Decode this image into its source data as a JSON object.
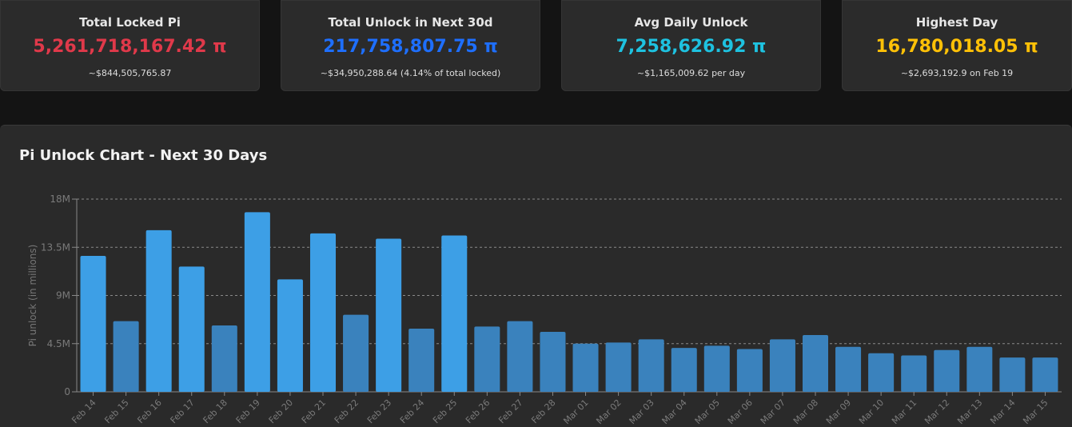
{
  "stats": [
    {
      "label": "Total Locked Pi",
      "value": "5,261,718,167.42 π",
      "sub": "~$844,505,765.87",
      "color": "#e0394a"
    },
    {
      "label": "Total Unlock in Next 30d",
      "value": "217,758,807.75 π",
      "sub": "~$34,950,288.64 (4.14% of total locked)",
      "color": "#1e6fff"
    },
    {
      "label": "Avg Daily Unlock",
      "value": "7,258,626.92 π",
      "sub": "~$1,165,009.62 per day",
      "color": "#1ec2e0"
    },
    {
      "label": "Highest Day",
      "value": "16,780,018.05 π",
      "sub": "~$2,693,192.9 on Feb 19",
      "color": "#ffc107"
    }
  ],
  "panel": {
    "title": "Pi Unlock Chart - Next 30 Days"
  },
  "chart_data": {
    "type": "bar",
    "title": "Pi Unlock Chart - Next 30 Days",
    "ylabel": "Pi unlock (in millions)",
    "xlabel": "",
    "ylim": [
      0,
      18
    ],
    "yticks": [
      "0",
      "4.5M",
      "9M",
      "13.5M",
      "18M"
    ],
    "ytick_values": [
      0,
      4.5,
      9,
      13.5,
      18
    ],
    "grid": true,
    "categories": [
      "Feb 14",
      "Feb 15",
      "Feb 16",
      "Feb 17",
      "Feb 18",
      "Feb 19",
      "Feb 20",
      "Feb 21",
      "Feb 22",
      "Feb 23",
      "Feb 24",
      "Feb 25",
      "Feb 26",
      "Feb 27",
      "Feb 28",
      "Mar 01",
      "Mar 02",
      "Mar 03",
      "Mar 04",
      "Mar 05",
      "Mar 06",
      "Mar 07",
      "Mar 08",
      "Mar 09",
      "Mar 10",
      "Mar 11",
      "Mar 12",
      "Mar 13",
      "Mar 14",
      "Mar 15"
    ],
    "values": [
      12.7,
      6.6,
      15.1,
      11.7,
      6.2,
      16.78,
      10.5,
      14.8,
      7.2,
      14.3,
      5.9,
      14.6,
      6.1,
      6.6,
      5.6,
      4.5,
      4.6,
      4.9,
      4.1,
      4.3,
      4.0,
      4.9,
      5.3,
      4.2,
      3.6,
      3.4,
      3.9,
      4.2,
      3.2,
      3.2
    ],
    "colors": {
      "high": "#3d9fe6",
      "low": "#3a82bd",
      "axis": "#888888",
      "grid": "#8a8a8a",
      "tick": "#7a7a7a"
    }
  }
}
